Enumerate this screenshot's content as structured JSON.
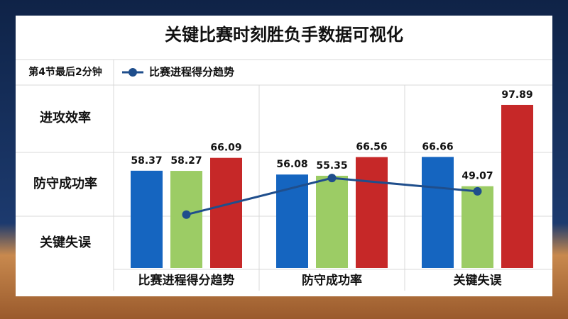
{
  "chart_data": {
    "type": "bar",
    "title": "关键比赛时刻胜负手数据可视化",
    "corner_label": "第4节最后2分钟",
    "row_labels": [
      "进攻效率",
      "防守成功率",
      "关键失误"
    ],
    "categories": [
      "比赛进程得分趋势",
      "防守成功率",
      "关键失误"
    ],
    "ylim": [
      0,
      100
    ],
    "series": [
      {
        "color": "#1565c0",
        "values": [
          58.37,
          56.08,
          66.66
        ]
      },
      {
        "color": "#9ccc65",
        "values": [
          58.27,
          55.35,
          49.07
        ]
      },
      {
        "color": "#c62828",
        "values": [
          66.09,
          66.56,
          97.89
        ]
      },
      {
        "name": "比赛进程得分趋势",
        "type": "line",
        "color": "#1f4e8c",
        "values": [
          32,
          54,
          46
        ]
      }
    ]
  }
}
